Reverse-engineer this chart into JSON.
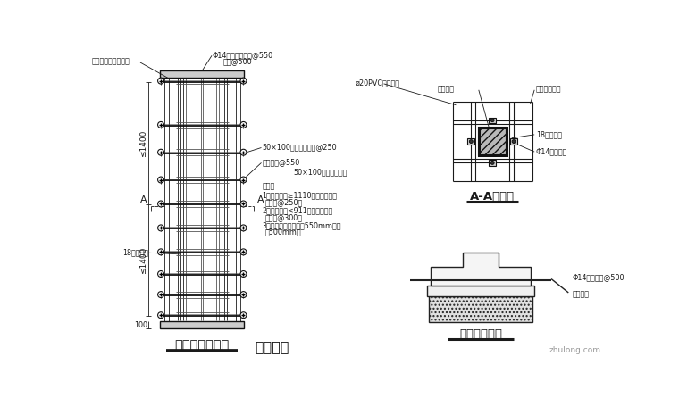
{
  "bg_color": "#ffffff",
  "title_bottom": "（图四）",
  "left_diagram_title": "柱模立面大样图",
  "right_top_title": "A-A剖面图",
  "right_bottom_title": "柱帽模板大样",
  "lc": "#1a1a1a",
  "annotations": {
    "top_left": "红油漆涂上轴线标志",
    "top_center1": "Φ14对拉螺栓竖向@550",
    "top_center2": "横向@500",
    "top_right1": "ø20PVC塑料套管",
    "mid_right1": "50×100木枋（背楞）@250",
    "mid_right2": "钢管夹具@550",
    "mid_right3": "50×100木枋（背楞）",
    "note_header": "注明：",
    "note1a": "1、柱截面宽≥1110以上，柱模背",
    "note1b": "撑木枋@250。",
    "note2a": "2、柱截面宽<911以下，柱模背",
    "note2b": "撑木枋@300。",
    "note3a": "3、柱模件间距：竖向550mm；横",
    "note3b": "向500mm。",
    "dim_top": "≤1400",
    "dim_bottom": "≤1400",
    "dim_base": "100",
    "section_label1": "钢筋砼柱",
    "section_label2": "钢管稳定支架",
    "section_label3": "18厚九夹板",
    "section_label4": "Φ14对拉螺栓",
    "capform_label1": "Φ14对拉螺栓@500",
    "capform_label2": "钢管夹具",
    "label_18ply": "18厚九夹板"
  }
}
